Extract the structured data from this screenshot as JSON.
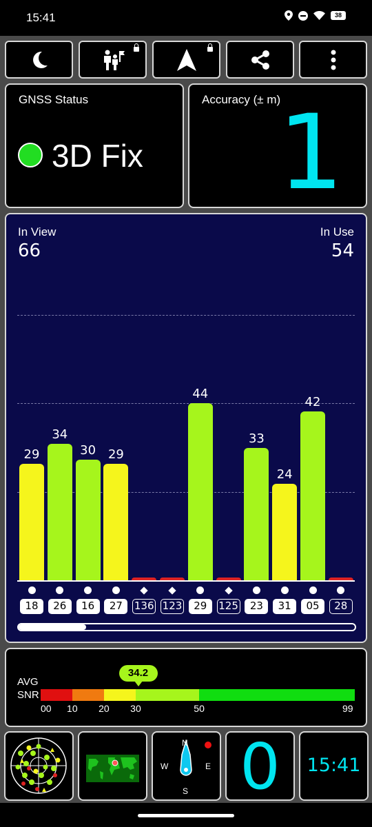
{
  "status_bar": {
    "time": "15:41",
    "battery": "38"
  },
  "toolbar": {
    "buttons": [
      {
        "name": "night-mode",
        "icon": "moon-icon",
        "locked": false
      },
      {
        "name": "people",
        "icon": "people-flag-icon",
        "locked": true
      },
      {
        "name": "navigation",
        "icon": "navigation-arrow-icon",
        "locked": true
      },
      {
        "name": "share",
        "icon": "share-icon",
        "locked": false
      },
      {
        "name": "more",
        "icon": "more-vert-icon",
        "locked": false
      }
    ]
  },
  "gnss": {
    "title": "GNSS Status",
    "value": "3D Fix",
    "indicator_color": "#22dd22"
  },
  "accuracy": {
    "title": "Accuracy (± m)",
    "value": "1",
    "color": "#00e5f0"
  },
  "satellites": {
    "in_view_label": "In View",
    "in_view": "66",
    "in_use_label": "In Use",
    "in_use": "54",
    "scroll_position": 0.2
  },
  "chart_data": {
    "type": "bar",
    "categories": [
      "18",
      "26",
      "16",
      "27",
      "136",
      "123",
      "29",
      "125",
      "23",
      "31",
      "05",
      "28"
    ],
    "values": [
      29,
      34,
      30,
      29,
      0,
      0,
      44,
      0,
      33,
      24,
      42,
      0
    ],
    "labels": [
      "29",
      "34",
      "30",
      "29",
      "",
      "",
      "44",
      "",
      "33",
      "24",
      "42",
      ""
    ],
    "used": [
      true,
      true,
      true,
      true,
      false,
      false,
      true,
      false,
      true,
      true,
      true,
      false
    ],
    "markers": [
      "circle",
      "circle",
      "circle",
      "circle",
      "diamond",
      "diamond",
      "circle",
      "diamond",
      "circle",
      "circle",
      "circle",
      "circle"
    ],
    "ylim": [
      0,
      66
    ],
    "grid": true,
    "colors": {
      "low": "#f5f51c",
      "high": "#a6f51c",
      "zero": "#dd2222"
    }
  },
  "snr": {
    "label_line1": "AVG",
    "label_line2": "SNR",
    "avg": "34.2",
    "avg_value": 34.2,
    "ticks": [
      "00",
      "10",
      "20",
      "30",
      "50",
      "99"
    ],
    "tick_values": [
      0,
      10,
      20,
      30,
      50,
      99
    ],
    "segments": [
      {
        "from": 0,
        "to": 10,
        "color": "#e01010"
      },
      {
        "from": 10,
        "to": 20,
        "color": "#f07a10"
      },
      {
        "from": 20,
        "to": 30,
        "color": "#f5f51c"
      },
      {
        "from": 30,
        "to": 50,
        "color": "#a6f51c"
      },
      {
        "from": 50,
        "to": 99,
        "color": "#10dd10"
      }
    ]
  },
  "bottom": {
    "count": "0",
    "time": "15:41",
    "compass": {
      "n": "N",
      "s": "S",
      "e": "E",
      "w": "W"
    }
  }
}
